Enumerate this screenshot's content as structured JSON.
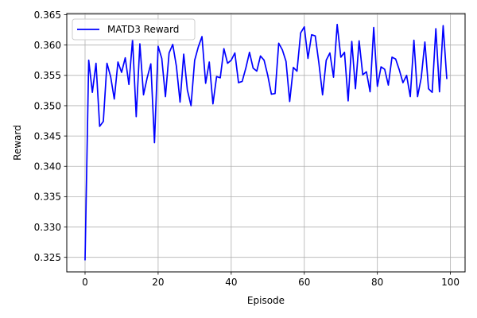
{
  "chart_data": {
    "type": "line",
    "title": "",
    "xlabel": "Episode",
    "ylabel": "Reward",
    "xlim": [
      -5,
      104
    ],
    "ylim": [
      0.3226,
      0.3652
    ],
    "xticks": [
      0,
      20,
      40,
      60,
      80,
      100
    ],
    "xtick_labels": [
      "0",
      "20",
      "40",
      "60",
      "80",
      "100"
    ],
    "yticks": [
      0.325,
      0.33,
      0.335,
      0.34,
      0.345,
      0.35,
      0.355,
      0.36,
      0.365
    ],
    "ytick_labels": [
      "0.325",
      "0.330",
      "0.335",
      "0.340",
      "0.345",
      "0.350",
      "0.355",
      "0.360",
      "0.365"
    ],
    "grid": true,
    "legend_position": "top-left",
    "series": [
      {
        "name": "MATD3 Reward",
        "color": "#0000ff",
        "x": [
          0,
          1,
          2,
          3,
          4,
          5,
          6,
          7,
          8,
          9,
          10,
          11,
          12,
          13,
          14,
          15,
          16,
          17,
          18,
          19,
          20,
          21,
          22,
          23,
          24,
          25,
          26,
          27,
          28,
          29,
          30,
          31,
          32,
          33,
          34,
          35,
          36,
          37,
          38,
          39,
          40,
          41,
          42,
          43,
          44,
          45,
          46,
          47,
          48,
          49,
          50,
          51,
          52,
          53,
          54,
          55,
          56,
          57,
          58,
          59,
          60,
          61,
          62,
          63,
          64,
          65,
          66,
          67,
          68,
          69,
          70,
          71,
          72,
          73,
          74,
          75,
          76,
          77,
          78,
          79,
          80,
          81,
          82,
          83,
          84,
          85,
          86,
          87,
          88,
          89,
          90,
          91,
          92,
          93,
          94,
          95,
          96,
          97,
          98,
          99
        ],
        "y": [
          0.3245,
          0.3575,
          0.3522,
          0.357,
          0.3466,
          0.3474,
          0.357,
          0.3548,
          0.3511,
          0.3572,
          0.3555,
          0.3579,
          0.3535,
          0.3609,
          0.3482,
          0.3602,
          0.3518,
          0.3546,
          0.3569,
          0.3439,
          0.3598,
          0.3578,
          0.3515,
          0.3587,
          0.3601,
          0.3565,
          0.3506,
          0.3585,
          0.3526,
          0.35,
          0.3575,
          0.3597,
          0.3614,
          0.3537,
          0.3572,
          0.3503,
          0.3548,
          0.3546,
          0.3594,
          0.357,
          0.3575,
          0.3587,
          0.3538,
          0.354,
          0.3562,
          0.3588,
          0.3562,
          0.3557,
          0.3582,
          0.3575,
          0.355,
          0.3519,
          0.352,
          0.3603,
          0.3592,
          0.3573,
          0.3507,
          0.3563,
          0.3557,
          0.362,
          0.363,
          0.3578,
          0.3617,
          0.3615,
          0.357,
          0.3518,
          0.3575,
          0.3587,
          0.3547,
          0.3634,
          0.358,
          0.3588,
          0.3508,
          0.3606,
          0.3528,
          0.3607,
          0.3551,
          0.3556,
          0.3523,
          0.3629,
          0.3532,
          0.3564,
          0.356,
          0.3534,
          0.358,
          0.3577,
          0.3559,
          0.3538,
          0.355,
          0.3515,
          0.3608,
          0.3515,
          0.3546,
          0.3605,
          0.3528,
          0.3522,
          0.3627,
          0.3523,
          0.3632,
          0.3544
        ]
      }
    ]
  }
}
